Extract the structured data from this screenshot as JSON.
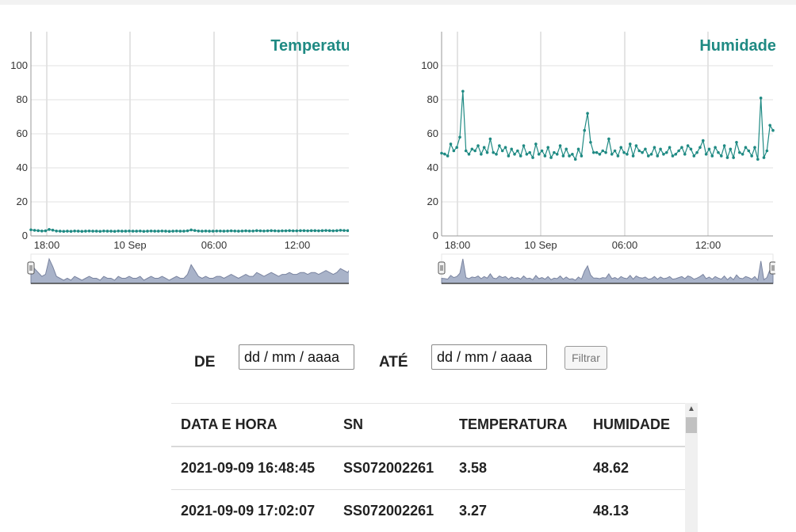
{
  "charts": [
    {
      "title": "Temperatura",
      "y_ticks": [
        "0",
        "20",
        "40",
        "60",
        "80",
        "100"
      ],
      "x_ticks": [
        "18:00",
        "10 Sep",
        "06:00",
        "12:00"
      ],
      "series_color": "#1f8a83"
    },
    {
      "title": "Humidade",
      "y_ticks": [
        "0",
        "20",
        "40",
        "60",
        "80",
        "100"
      ],
      "x_ticks": [
        "18:00",
        "10 Sep",
        "06:00",
        "12:00"
      ],
      "series_color": "#1f8a83"
    }
  ],
  "chart_data": [
    {
      "type": "line",
      "title": "Temperatura",
      "xlabel": "",
      "ylabel": "",
      "ylim": [
        0,
        120
      ],
      "x_ticks": [
        "18:00",
        "10 Sep",
        "06:00",
        "12:00"
      ],
      "grid": true,
      "navigator": true,
      "series": [
        {
          "values": [
            3.6,
            3.3,
            3.1,
            2.9,
            3.0,
            3.8,
            3.4,
            2.9,
            2.8,
            2.7,
            2.8,
            2.7,
            2.9,
            2.8,
            2.7,
            2.8,
            2.9,
            2.8,
            2.8,
            2.7,
            2.9,
            2.8,
            2.8,
            2.7,
            2.9,
            2.8,
            2.8,
            2.9,
            2.8,
            2.8,
            2.9,
            2.7,
            2.8,
            2.9,
            2.8,
            2.8,
            2.9,
            2.8,
            2.7,
            2.8,
            2.9,
            2.8,
            2.8,
            3.0,
            3.5,
            3.2,
            2.9,
            2.8,
            2.9,
            2.8,
            2.8,
            2.9,
            2.9,
            2.8,
            2.9,
            3.0,
            2.9,
            2.8,
            2.9,
            3.0,
            2.9,
            2.9,
            3.1,
            3.0,
            2.9,
            3.0,
            3.1,
            3.0,
            2.9,
            3.0,
            3.0,
            3.1,
            3.0,
            3.0,
            3.1,
            3.1,
            3.0,
            3.1,
            3.1,
            3.0,
            3.1,
            3.2,
            3.1,
            3.0,
            3.1,
            3.3,
            3.2,
            3.1,
            3.4,
            3.2,
            3.3,
            3.6
          ]
        }
      ]
    },
    {
      "type": "line",
      "title": "Humidade",
      "xlabel": "",
      "ylabel": "",
      "ylim": [
        0,
        120
      ],
      "x_ticks": [
        "18:00",
        "10 Sep",
        "06:00",
        "12:00"
      ],
      "grid": true,
      "navigator": true,
      "series": [
        {
          "values": [
            48.6,
            48.1,
            47,
            54,
            50,
            52,
            58,
            85,
            50,
            48,
            51,
            50,
            53,
            48,
            52,
            49,
            57,
            49,
            48,
            53,
            50,
            52,
            47,
            51,
            48,
            50,
            47,
            53,
            48,
            49,
            46,
            54,
            48,
            50,
            47,
            52,
            46,
            49,
            48,
            53,
            47,
            51,
            47,
            48,
            45,
            51,
            47,
            62,
            72,
            55,
            49,
            49,
            48,
            50,
            49,
            57,
            48,
            50,
            47,
            52,
            49,
            48,
            54,
            47,
            53,
            50,
            49,
            51,
            47,
            48,
            52,
            47,
            51,
            48,
            49,
            52,
            47,
            48,
            50,
            52,
            48,
            53,
            51,
            47,
            49,
            52,
            56,
            48,
            51,
            47,
            52,
            49,
            47,
            53,
            46,
            51,
            46,
            55,
            49,
            48,
            52,
            50,
            47,
            52,
            45,
            81,
            46,
            50,
            65,
            62
          ]
        }
      ]
    }
  ],
  "filter": {
    "from_label": "DE",
    "to_label": "ATÉ",
    "from_placeholder": "dd / mm / aaaa",
    "to_placeholder": "dd / mm / aaaa",
    "button_label": "Filtrar"
  },
  "table": {
    "headers": [
      "DATA E HORA",
      "SN",
      "TEMPERATURA",
      "HUMIDADE"
    ],
    "rows": [
      [
        "2021-09-09 16:48:45",
        "SS072002261",
        "3.58",
        "48.62"
      ],
      [
        "2021-09-09 17:02:07",
        "SS072002261",
        "3.27",
        "48.13"
      ]
    ]
  },
  "scrollbar": {
    "up_icon": "chevron-up-icon"
  }
}
